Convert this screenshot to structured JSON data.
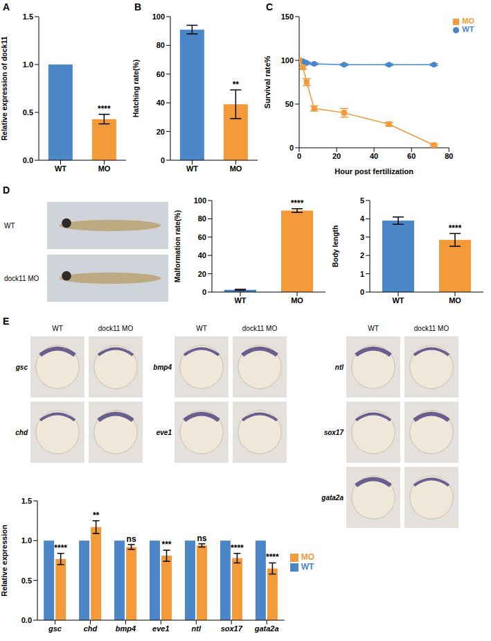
{
  "chart_data": [
    {
      "panel": "A",
      "type": "bar",
      "y_label": "Relative expression of dock11",
      "categories": [
        "WT",
        "MO"
      ],
      "values": [
        1,
        0.43
      ],
      "error": [
        0,
        0.05
      ],
      "colors": [
        "#4a86c8",
        "#f39a3b"
      ],
      "significance": [
        null,
        "****"
      ],
      "ylim": [
        0,
        1.5
      ],
      "yticks": [
        {
          "value": 0,
          "label": "0.0"
        },
        {
          "value": 0.5,
          "label": "0.5"
        },
        {
          "value": 1,
          "label": "1.0"
        },
        {
          "value": 1.5,
          "label": "1.5"
        }
      ]
    },
    {
      "panel": "B",
      "type": "bar",
      "y_label": "Hatching rate(%)",
      "categories": [
        "WT",
        "MO"
      ],
      "values": [
        91,
        39
      ],
      "error": [
        3,
        10
      ],
      "colors": [
        "#4a86c8",
        "#f39a3b"
      ],
      "significance": [
        null,
        "**"
      ],
      "ylim": [
        0,
        100
      ],
      "yticks": [
        0,
        20,
        40,
        60,
        80,
        100
      ]
    },
    {
      "panel": "C",
      "type": "line",
      "y_label": "Survival rate%",
      "x_label": "Hour post fertilization",
      "xlim": [
        0,
        80
      ],
      "xticks": [
        0,
        20,
        40,
        60,
        80
      ],
      "ylim": [
        0,
        150
      ],
      "yticks": [
        0,
        50,
        100,
        150
      ],
      "legend": "upper right",
      "series": [
        {
          "name": "WT",
          "color": "#4a86c8",
          "marker": "circle",
          "x": [
            0,
            2,
            4,
            8,
            24,
            48,
            72
          ],
          "values": [
            100,
            99,
            97,
            96,
            95,
            95,
            95
          ],
          "error": [
            0,
            1,
            1,
            1,
            1,
            1,
            1
          ]
        },
        {
          "name": "MO",
          "color": "#f39a3b",
          "marker": "square",
          "x": [
            0,
            2,
            4,
            8,
            24,
            48,
            72
          ],
          "values": [
            100,
            92,
            75,
            45,
            40,
            27,
            3
          ],
          "error": [
            0,
            2,
            4,
            3,
            5,
            2,
            1
          ]
        }
      ]
    },
    {
      "panel": "D",
      "type": "image",
      "rows": [
        "WT",
        "dock11 MO"
      ]
    },
    {
      "type": "bar",
      "y_label": "Malformation rate(%)",
      "categories": [
        "WT",
        "MO"
      ],
      "values": [
        2.5,
        89
      ],
      "error": [
        0.5,
        2
      ],
      "colors": [
        "#4a86c8",
        "#f39a3b"
      ],
      "significance": [
        null,
        "****"
      ],
      "ylim": [
        0,
        100
      ],
      "yticks": [
        0,
        20,
        40,
        60,
        80,
        100
      ]
    },
    {
      "type": "bar",
      "y_label": "Body length",
      "categories": [
        "WT",
        "MO"
      ],
      "values": [
        3.9,
        2.85
      ],
      "error": [
        0.2,
        0.35
      ],
      "colors": [
        "#4a86c8",
        "#f39a3b"
      ],
      "significance": [
        null,
        "****"
      ],
      "ylim": [
        0,
        5
      ],
      "yticks": [
        0,
        1,
        2,
        3,
        4,
        5
      ]
    },
    {
      "panel": "E",
      "type": "image",
      "groups": [
        {
          "columns": [
            "WT",
            "dock11 MO"
          ],
          "rows": [
            "gsc",
            "chd"
          ]
        },
        {
          "columns": [
            "WT",
            "dock11 MO"
          ],
          "rows": [
            "bmp4",
            "eve1"
          ]
        },
        {
          "columns": [
            "WT",
            "dock11 MO"
          ],
          "rows": [
            "ntl",
            "sox17",
            "gata2a"
          ]
        }
      ]
    },
    {
      "type": "bar",
      "y_label": "Relative expression",
      "categories": [
        "gsc",
        "chd",
        "bmp4",
        "eve1",
        "ntl",
        "sox17",
        "gata2a"
      ],
      "legend": "right",
      "ylim": [
        0,
        1.5
      ],
      "yticks": [
        {
          "value": 0,
          "label": "0.0"
        },
        {
          "value": 0.5,
          "label": "0.5"
        },
        {
          "value": 1,
          "label": "1.0"
        },
        {
          "value": 1.5,
          "label": "1.5"
        }
      ],
      "series": [
        {
          "name": "WT",
          "color": "#4a86c8",
          "values": [
            1,
            1,
            1,
            1,
            1,
            1,
            1
          ],
          "error": [
            0,
            0,
            0,
            0,
            0,
            0,
            0
          ]
        },
        {
          "name": "MO",
          "color": "#f39a3b",
          "values": [
            0.77,
            1.17,
            0.92,
            0.81,
            0.94,
            0.78,
            0.65
          ],
          "error": [
            0.07,
            0.08,
            0.03,
            0.07,
            0.02,
            0.06,
            0.07
          ],
          "significance": [
            "****",
            "**",
            "ns",
            "***",
            "ns",
            "****",
            "****"
          ]
        }
      ]
    }
  ]
}
